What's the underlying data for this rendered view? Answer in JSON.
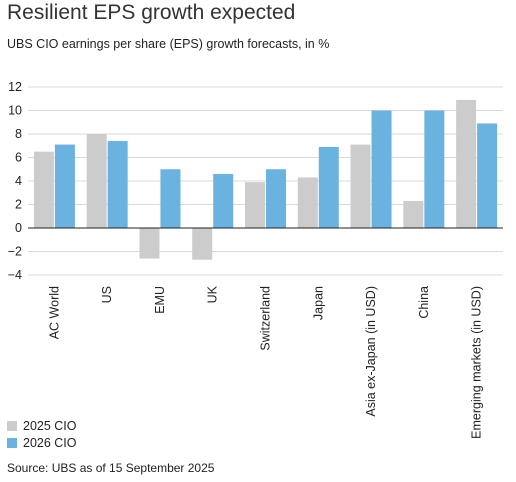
{
  "chart_data": {
    "type": "bar",
    "title": "Resilient EPS growth expected",
    "subtitle": "UBS CIO earnings per share (EPS) growth forecasts, in %",
    "xlabel": "",
    "ylabel": "",
    "ylim": [
      -4,
      12
    ],
    "yticks": [
      -4,
      -2,
      0,
      2,
      4,
      6,
      8,
      10,
      12
    ],
    "grid": true,
    "legend_position": "bottom-left",
    "categories": [
      "AC World",
      "US",
      "EMU",
      "UK",
      "Switzerland",
      "Japan",
      "Asia ex-Japan (in USD)",
      "China",
      "Emerging markets (in USD)"
    ],
    "series": [
      {
        "name": "2025 CIO",
        "color": "#cccccc",
        "values": [
          6.5,
          8.0,
          -2.6,
          -2.7,
          3.9,
          4.3,
          7.1,
          2.3,
          10.9
        ]
      },
      {
        "name": "2026 CIO",
        "color": "#6ab2e0",
        "values": [
          7.1,
          7.4,
          5.0,
          4.6,
          5.0,
          6.9,
          10.0,
          10.0,
          8.9
        ]
      }
    ]
  },
  "source": "Source: UBS as of 15 September 2025"
}
